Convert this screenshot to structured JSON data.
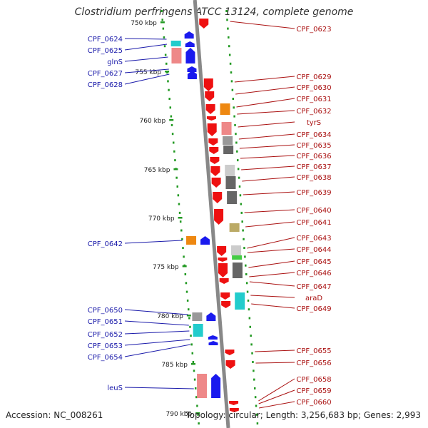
{
  "title": "Clostridium perfringens ATCC 13124, complete genome",
  "footer": {
    "accession": "Accession: NC_008261",
    "topology": "Topology: circular; Length: 3,256,683 bp; Genes: 2,993"
  },
  "colors": {
    "forward_strand": "#1a1aee",
    "reverse_strand": "#ee1111",
    "backbone": "#888888",
    "tick": "#229922",
    "cyan": "#22cccc",
    "orange": "#ee8811",
    "pink": "#ee8888",
    "olive": "#bbaa66",
    "grey_dark": "#666666",
    "grey_mid": "#999999",
    "grey_light": "#cccccc",
    "green": "#44cc44"
  },
  "scale_labels": [
    "750 kbp",
    "755 kbp",
    "760 kbp",
    "765 kbp",
    "770 kbp",
    "775 kbp",
    "780 kbp",
    "785 kbp",
    "790 kbp"
  ],
  "left_genes": [
    "CPF_0624",
    "CPF_0625",
    "glnS",
    "CPF_0627",
    "CPF_0628",
    "CPF_0642",
    "CPF_0650",
    "CPF_0651",
    "CPF_0652",
    "CPF_0653",
    "CPF_0654",
    "leuS"
  ],
  "right_genes": [
    "CPF_0623",
    "CPF_0629",
    "CPF_0630",
    "CPF_0631",
    "CPF_0632",
    "tyrS",
    "CPF_0634",
    "CPF_0635",
    "CPF_0636",
    "CPF_0637",
    "CPF_0638",
    "CPF_0639",
    "CPF_0640",
    "CPF_0641",
    "CPF_0643",
    "CPF_0644",
    "CPF_0645",
    "CPF_0646",
    "CPF_0647",
    "araD",
    "CPF_0649",
    "CPF_0655",
    "CPF_0656",
    "CPF_0658",
    "CPF_0659",
    "CPF_0660"
  ]
}
